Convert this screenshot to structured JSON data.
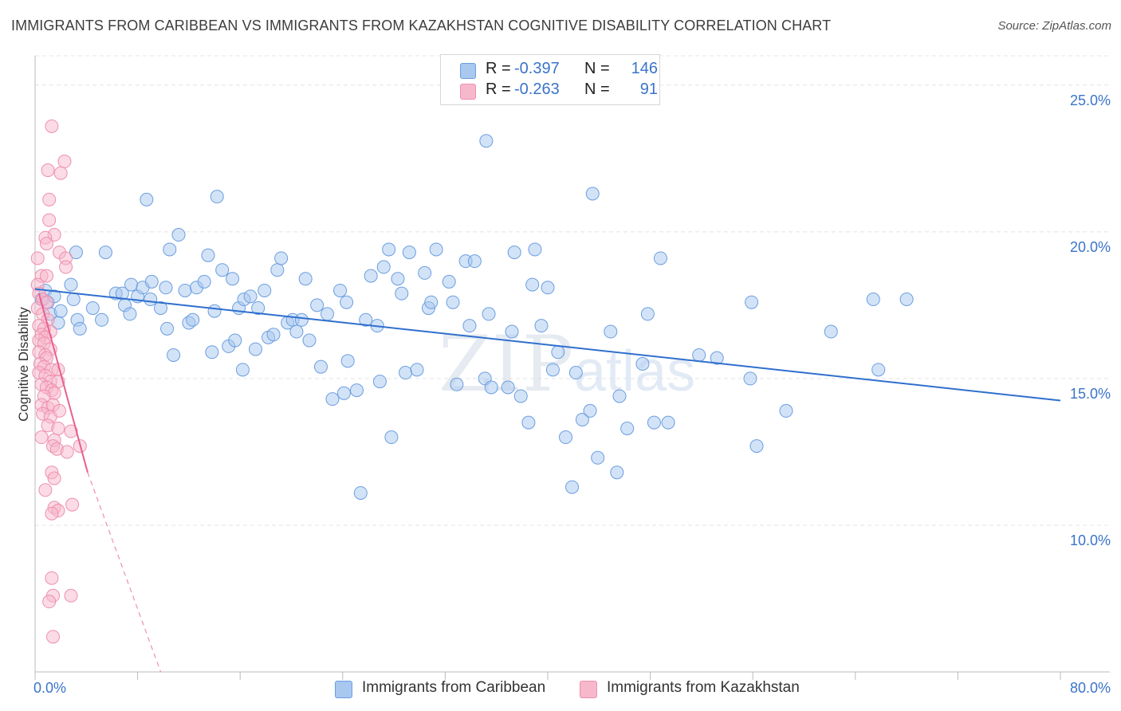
{
  "title": "IMMIGRANTS FROM CARIBBEAN VS IMMIGRANTS FROM KAZAKHSTAN COGNITIVE DISABILITY CORRELATION CHART",
  "source": "Source: ZipAtlas.com",
  "watermark": {
    "zip": "ZIP",
    "atlas": "atlas"
  },
  "legend": {
    "rows": [
      {
        "r_label": "R =",
        "r_value": "-0.397",
        "n_label": "N =",
        "n_value": "146",
        "color": "#a8c8f0"
      },
      {
        "r_label": "R =",
        "r_value": "-0.263",
        "n_label": "N =",
        "n_value": "91",
        "color": "#f7b8cb"
      }
    ]
  },
  "bottom_legend": {
    "caribbean": "Immigrants from Caribbean",
    "kazakhstan": "Immigrants from Kazakhstan"
  },
  "colors": {
    "blue_fill": "#a8c8f0",
    "blue_stroke": "#6b9ee0",
    "blue_line": "#2f6fce",
    "pink_fill": "#f7b8cb",
    "pink_stroke": "#ee8fae",
    "pink_line": "#e8608e",
    "axis_text": "#3a74c9",
    "grid": "#e4e4e4"
  },
  "chart_data": {
    "type": "scatter",
    "title": "IMMIGRANTS FROM CARIBBEAN VS IMMIGRANTS FROM KAZAKHSTAN COGNITIVE DISABILITY CORRELATION CHART",
    "xlabel": "",
    "ylabel": "Cognitive Disability",
    "xlim": [
      0,
      80
    ],
    "ylim": [
      5,
      26
    ],
    "x_tick_labels": [
      "0.0%",
      "80.0%"
    ],
    "y_ticks": [
      10,
      15,
      20,
      25
    ],
    "y_tick_labels": [
      "10.0%",
      "15.0%",
      "20.0%",
      "25.0%"
    ],
    "grid": true,
    "legend_placement": "top-center",
    "series": [
      {
        "name": "Immigrants from Caribbean",
        "r": -0.397,
        "n": 146,
        "trend": {
          "x": [
            0,
            80
          ],
          "y": [
            18.05,
            14.25
          ]
        },
        "points": [
          [
            0.5,
            17.7
          ],
          [
            0.8,
            18.0
          ],
          [
            1.0,
            17.6
          ],
          [
            1.2,
            17.2
          ],
          [
            1.5,
            17.8
          ],
          [
            1.8,
            16.9
          ],
          [
            2.0,
            17.3
          ],
          [
            2.8,
            18.2
          ],
          [
            3.0,
            17.7
          ],
          [
            3.3,
            17.0
          ],
          [
            3.5,
            16.7
          ],
          [
            3.2,
            19.3
          ],
          [
            4.5,
            17.4
          ],
          [
            5.2,
            17.0
          ],
          [
            5.5,
            19.3
          ],
          [
            6.3,
            17.9
          ],
          [
            6.8,
            17.9
          ],
          [
            7.0,
            17.5
          ],
          [
            7.4,
            17.2
          ],
          [
            7.5,
            18.2
          ],
          [
            8.0,
            17.8
          ],
          [
            8.4,
            18.1
          ],
          [
            9.0,
            17.7
          ],
          [
            9.1,
            18.3
          ],
          [
            8.7,
            21.1
          ],
          [
            9.8,
            17.4
          ],
          [
            10.2,
            18.1
          ],
          [
            10.3,
            16.7
          ],
          [
            10.5,
            19.4
          ],
          [
            10.8,
            15.8
          ],
          [
            11.2,
            19.9
          ],
          [
            11.7,
            18.0
          ],
          [
            12.0,
            16.9
          ],
          [
            12.3,
            17.0
          ],
          [
            12.6,
            18.1
          ],
          [
            13.2,
            18.3
          ],
          [
            13.5,
            19.2
          ],
          [
            13.8,
            15.9
          ],
          [
            14.0,
            17.3
          ],
          [
            14.2,
            21.2
          ],
          [
            14.6,
            18.7
          ],
          [
            15.1,
            16.1
          ],
          [
            15.4,
            18.4
          ],
          [
            15.6,
            16.3
          ],
          [
            15.9,
            17.4
          ],
          [
            16.2,
            15.3
          ],
          [
            16.3,
            17.7
          ],
          [
            16.8,
            17.8
          ],
          [
            17.2,
            16.0
          ],
          [
            17.4,
            17.4
          ],
          [
            17.9,
            18.0
          ],
          [
            18.2,
            16.4
          ],
          [
            18.6,
            16.5
          ],
          [
            18.9,
            18.7
          ],
          [
            19.2,
            19.1
          ],
          [
            19.7,
            16.9
          ],
          [
            20.1,
            17.0
          ],
          [
            20.4,
            16.6
          ],
          [
            20.8,
            17.0
          ],
          [
            21.1,
            18.4
          ],
          [
            21.4,
            16.3
          ],
          [
            22.0,
            17.5
          ],
          [
            22.3,
            15.4
          ],
          [
            22.8,
            17.2
          ],
          [
            23.2,
            14.3
          ],
          [
            23.8,
            18.0
          ],
          [
            24.1,
            14.5
          ],
          [
            24.3,
            17.6
          ],
          [
            24.4,
            15.6
          ],
          [
            25.1,
            14.6
          ],
          [
            25.4,
            11.1
          ],
          [
            25.8,
            17.0
          ],
          [
            26.2,
            18.5
          ],
          [
            26.7,
            16.8
          ],
          [
            26.9,
            14.9
          ],
          [
            27.2,
            18.8
          ],
          [
            27.6,
            19.4
          ],
          [
            27.8,
            13.0
          ],
          [
            28.3,
            18.4
          ],
          [
            28.6,
            17.9
          ],
          [
            28.9,
            15.2
          ],
          [
            29.2,
            19.3
          ],
          [
            29.8,
            15.3
          ],
          [
            30.4,
            18.6
          ],
          [
            30.7,
            17.4
          ],
          [
            30.9,
            17.6
          ],
          [
            31.3,
            19.4
          ],
          [
            32.3,
            18.3
          ],
          [
            32.6,
            17.6
          ],
          [
            32.9,
            14.8
          ],
          [
            33.6,
            19.0
          ],
          [
            33.9,
            16.8
          ],
          [
            34.3,
            19.0
          ],
          [
            35.1,
            15.0
          ],
          [
            35.4,
            17.2
          ],
          [
            35.6,
            14.7
          ],
          [
            35.2,
            23.1
          ],
          [
            36.9,
            14.7
          ],
          [
            37.2,
            16.6
          ],
          [
            37.4,
            19.3
          ],
          [
            37.9,
            14.4
          ],
          [
            38.5,
            13.5
          ],
          [
            38.8,
            18.2
          ],
          [
            39.0,
            19.4
          ],
          [
            39.5,
            16.8
          ],
          [
            40.0,
            18.1
          ],
          [
            40.4,
            15.3
          ],
          [
            40.8,
            15.9
          ],
          [
            41.4,
            13.0
          ],
          [
            41.9,
            11.3
          ],
          [
            42.2,
            15.2
          ],
          [
            42.7,
            13.6
          ],
          [
            43.3,
            13.9
          ],
          [
            43.5,
            21.3
          ],
          [
            43.9,
            12.3
          ],
          [
            44.9,
            16.6
          ],
          [
            45.4,
            11.8
          ],
          [
            45.6,
            14.4
          ],
          [
            46.2,
            13.3
          ],
          [
            47.4,
            15.5
          ],
          [
            47.8,
            17.2
          ],
          [
            48.3,
            13.5
          ],
          [
            48.8,
            19.1
          ],
          [
            49.4,
            13.5
          ],
          [
            51.8,
            15.8
          ],
          [
            53.2,
            15.7
          ],
          [
            55.8,
            15.0
          ],
          [
            56.3,
            12.7
          ],
          [
            55.9,
            17.6
          ],
          [
            58.6,
            13.9
          ],
          [
            62.1,
            16.6
          ],
          [
            65.4,
            17.7
          ],
          [
            65.8,
            15.3
          ],
          [
            68.0,
            17.7
          ]
        ]
      },
      {
        "name": "Immigrants from Kazakhstan",
        "r": -0.263,
        "n": 91,
        "trend": {
          "x": [
            0.3,
            4.1
          ],
          "y": [
            17.9,
            11.8
          ]
        },
        "trend_extension": {
          "x": [
            4.1,
            9.8
          ],
          "y": [
            11.8,
            5.0
          ]
        },
        "points": [
          [
            1.3,
            23.6
          ],
          [
            2.3,
            22.4
          ],
          [
            1.0,
            22.1
          ],
          [
            2.0,
            22.0
          ],
          [
            1.1,
            21.1
          ],
          [
            1.1,
            20.4
          ],
          [
            1.5,
            19.9
          ],
          [
            0.8,
            19.8
          ],
          [
            0.9,
            19.6
          ],
          [
            1.9,
            19.3
          ],
          [
            0.2,
            19.1
          ],
          [
            2.4,
            19.1
          ],
          [
            2.4,
            18.8
          ],
          [
            0.5,
            18.5
          ],
          [
            0.9,
            18.5
          ],
          [
            0.2,
            18.2
          ],
          [
            0.3,
            17.9
          ],
          [
            0.6,
            17.7
          ],
          [
            0.9,
            17.6
          ],
          [
            0.2,
            17.4
          ],
          [
            0.6,
            17.2
          ],
          [
            1.0,
            17.0
          ],
          [
            0.3,
            16.8
          ],
          [
            0.7,
            16.7
          ],
          [
            1.2,
            16.6
          ],
          [
            0.5,
            16.5
          ],
          [
            0.8,
            16.4
          ],
          [
            0.3,
            16.3
          ],
          [
            0.7,
            16.2
          ],
          [
            1.2,
            16.0
          ],
          [
            0.3,
            15.9
          ],
          [
            0.8,
            15.8
          ],
          [
            0.9,
            15.7
          ],
          [
            0.4,
            15.5
          ],
          [
            0.7,
            15.4
          ],
          [
            1.3,
            15.3
          ],
          [
            0.3,
            15.2
          ],
          [
            0.8,
            15.1
          ],
          [
            1.8,
            15.3
          ],
          [
            1.2,
            14.9
          ],
          [
            1.8,
            14.9
          ],
          [
            0.5,
            14.8
          ],
          [
            0.9,
            14.7
          ],
          [
            1.3,
            14.6
          ],
          [
            1.5,
            14.5
          ],
          [
            0.7,
            14.4
          ],
          [
            0.5,
            14.1
          ],
          [
            1.0,
            14.0
          ],
          [
            1.4,
            14.1
          ],
          [
            0.6,
            13.8
          ],
          [
            1.2,
            13.7
          ],
          [
            1.9,
            13.9
          ],
          [
            1.0,
            13.4
          ],
          [
            1.8,
            13.3
          ],
          [
            2.8,
            13.2
          ],
          [
            0.5,
            13.0
          ],
          [
            1.5,
            12.9
          ],
          [
            1.4,
            12.7
          ],
          [
            1.7,
            12.6
          ],
          [
            2.5,
            12.5
          ],
          [
            3.5,
            12.7
          ],
          [
            1.3,
            11.8
          ],
          [
            1.5,
            11.6
          ],
          [
            0.8,
            11.2
          ],
          [
            2.9,
            10.7
          ],
          [
            1.5,
            10.6
          ],
          [
            1.8,
            10.5
          ],
          [
            1.3,
            10.4
          ],
          [
            1.3,
            8.2
          ],
          [
            1.4,
            7.6
          ],
          [
            2.8,
            7.6
          ],
          [
            1.1,
            7.4
          ],
          [
            1.4,
            6.2
          ]
        ]
      }
    ]
  }
}
